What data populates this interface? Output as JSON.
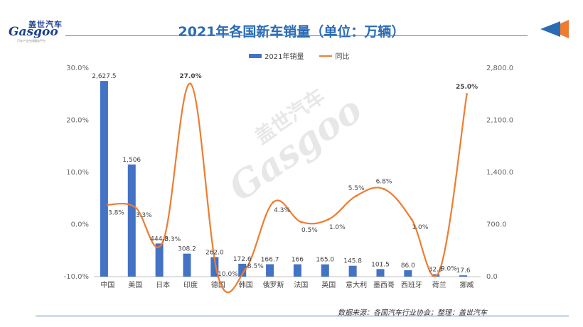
{
  "header": {
    "logo_cn": "盖世汽车",
    "logo_en": "Gasgoo",
    "logo_sub": "汽车产业在线服务平台",
    "title": "2021年各国新车销量（单位：万辆）"
  },
  "watermark": {
    "cn": "盖世汽车",
    "en": "Gasgoo"
  },
  "footer": {
    "source": "数据来源：各国汽车行业协会；整理：盖世汽车"
  },
  "chart_data": {
    "type": "bar",
    "title": "2021年各国新车销量（单位：万辆）",
    "categories": [
      "中国",
      "美国",
      "日本",
      "印度",
      "德国",
      "韩国",
      "俄罗斯",
      "法国",
      "英国",
      "意大利",
      "墨西哥",
      "西班牙",
      "荷兰",
      "挪威"
    ],
    "series": [
      {
        "name": "2021年销量",
        "type": "bar",
        "axis": "right",
        "color": "#4472c4",
        "values": [
          2627.5,
          1506,
          444.8,
          308.2,
          262.0,
          172.6,
          166.7,
          166,
          165.0,
          145.8,
          101.5,
          86.0,
          32.3,
          17.6
        ],
        "labels": [
          "2,627.5",
          "1,506",
          "444.8",
          "308.2",
          "262.0",
          "172.6",
          "166.7",
          "166",
          "165.0",
          "145.8",
          "101.5",
          "86.0",
          "32.3",
          "17.6"
        ]
      },
      {
        "name": "同比",
        "type": "line",
        "axis": "left",
        "color": "#ed7d31",
        "values": [
          3.8,
          3.3,
          -3.3,
          27.0,
          -10.0,
          -8.5,
          4.3,
          0.5,
          1.0,
          5.5,
          6.8,
          1.0,
          -9.0,
          25.0
        ],
        "labels": [
          "3.8%",
          "3.3%",
          "-3.3%",
          "27.0%",
          "-10.0%",
          "-8.5%",
          "4.3%",
          "0.5%",
          "1.0%",
          "5.5%",
          "6.8%",
          "1.0%",
          "-9.0%",
          "25.0%"
        ]
      }
    ],
    "left_axis": {
      "min": -10,
      "max": 30,
      "ticks": [
        "-10.0%",
        "0.0%",
        "10.0%",
        "20.0%",
        "30.0%"
      ]
    },
    "right_axis": {
      "min": 0,
      "max": 2800,
      "ticks": [
        "0.0",
        "700.0",
        "1,400.0",
        "2,100.0",
        "2,800.0"
      ]
    },
    "legend": "top",
    "grid": false
  }
}
